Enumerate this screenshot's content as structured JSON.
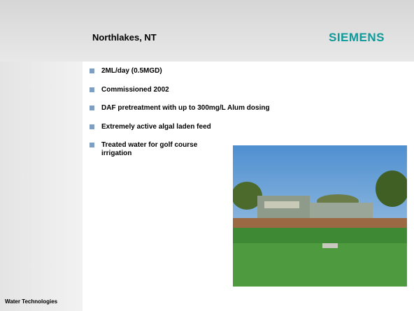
{
  "header": {
    "title": "Northlakes, NT",
    "logo": "SIEMENS"
  },
  "bullets": [
    "2ML/day (0.5MGD)",
    "Commissioned 2002",
    "DAF pretreatment with up to 300mg/L Alum dosing",
    "Extremely active algal laden feed",
    "Treated water for golf course irrigation"
  ],
  "footer": "Water Technologies"
}
